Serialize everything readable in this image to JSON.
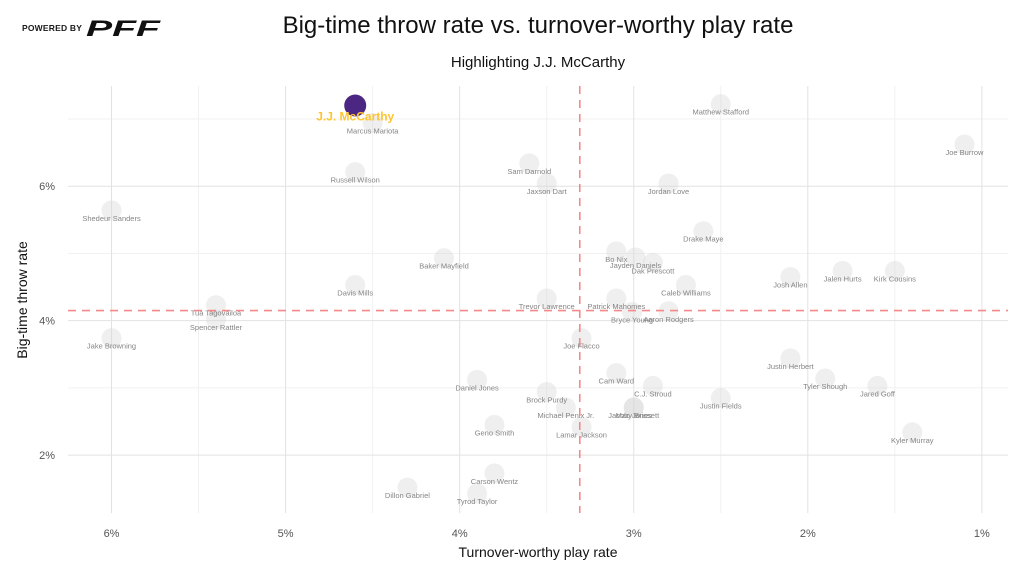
{
  "branding": {
    "powered_by": "POWERED BY",
    "logo_text": "PFF"
  },
  "chart_data": {
    "type": "scatter",
    "title": "Big-time throw rate vs. turnover-worthy play rate",
    "subtitle": "Highlighting J.J. McCarthy",
    "xlabel": "Turnover-worthy play rate",
    "ylabel": "Big-time throw rate",
    "x_unit": "%",
    "y_unit": "%",
    "x_reversed": true,
    "xlim": [
      6.25,
      0.85
    ],
    "ylim": [
      1.14,
      7.49
    ],
    "grid": true,
    "x_ticks": [
      6,
      5,
      4,
      3,
      2,
      1
    ],
    "x_tick_labels": [
      "6%",
      "5%",
      "4%",
      "3%",
      "2%",
      "1%"
    ],
    "x_minor_ticks": [
      5.5,
      4.5,
      3.5,
      2.5,
      1.5
    ],
    "y_ticks": [
      6,
      4,
      2
    ],
    "y_tick_labels": [
      "6%",
      "4%",
      "2%"
    ],
    "y_minor_ticks": [
      7,
      5,
      3
    ],
    "reference_lines": {
      "x": 3.31,
      "y": 4.15
    },
    "colors": {
      "highlight_point": "#4B2683",
      "highlight_label": "#FFC52F",
      "reference_line": "#F4898A",
      "point": "#d6d6d6",
      "point_label": "#858585"
    },
    "highlight": {
      "name": "J.J. McCarthy",
      "twp": 4.6,
      "btt": 7.2
    },
    "points": [
      {
        "name": "Marcus Mariota",
        "twp": 4.5,
        "btt": 6.94
      },
      {
        "name": "Russell Wilson",
        "twp": 4.6,
        "btt": 6.21
      },
      {
        "name": "Shedeur Sanders",
        "twp": 6.0,
        "btt": 5.64
      },
      {
        "name": "Sam Darnold",
        "twp": 3.6,
        "btt": 6.34
      },
      {
        "name": "Jaxson Dart",
        "twp": 3.5,
        "btt": 6.04
      },
      {
        "name": "Matthew Stafford",
        "twp": 2.5,
        "btt": 7.22
      },
      {
        "name": "Joe Burrow",
        "twp": 1.1,
        "btt": 6.62
      },
      {
        "name": "Jordan Love",
        "twp": 2.8,
        "btt": 6.04
      },
      {
        "name": "Drake Maye",
        "twp": 2.6,
        "btt": 5.33
      },
      {
        "name": "Baker Mayfield",
        "twp": 4.09,
        "btt": 4.93
      },
      {
        "name": "Bo Nix",
        "twp": 3.1,
        "btt": 5.03
      },
      {
        "name": "Jayden Daniels",
        "twp": 2.99,
        "btt": 4.94
      },
      {
        "name": "Dak Prescott",
        "twp": 2.89,
        "btt": 4.86
      },
      {
        "name": "Caleb Williams",
        "twp": 2.7,
        "btt": 4.53
      },
      {
        "name": "Davis Mills",
        "twp": 4.6,
        "btt": 4.53
      },
      {
        "name": "Trevor Lawrence",
        "twp": 3.5,
        "btt": 4.33
      },
      {
        "name": "Patrick Mahomes",
        "twp": 3.1,
        "btt": 4.33
      },
      {
        "name": "Bryce Young",
        "twp": 3.01,
        "btt": 4.13
      },
      {
        "name": "Aaron Rodgers",
        "twp": 2.8,
        "btt": 4.14
      },
      {
        "name": "Tua Tagovailoa",
        "twp": 5.4,
        "btt": 4.23
      },
      {
        "name": "Spencer Rattler",
        "twp": 5.4,
        "btt": 4.02
      },
      {
        "name": "Jake Browning",
        "twp": 6.0,
        "btt": 3.74
      },
      {
        "name": "Joe Flacco",
        "twp": 3.3,
        "btt": 3.74
      },
      {
        "name": "Josh Allen",
        "twp": 2.1,
        "btt": 4.65
      },
      {
        "name": "Jalen Hurts",
        "twp": 1.8,
        "btt": 4.74
      },
      {
        "name": "Kirk Cousins",
        "twp": 1.5,
        "btt": 4.74
      },
      {
        "name": "Justin Herbert",
        "twp": 2.1,
        "btt": 3.44
      },
      {
        "name": "Tyler Shough",
        "twp": 1.9,
        "btt": 3.14
      },
      {
        "name": "Jared Goff",
        "twp": 1.6,
        "btt": 3.03
      },
      {
        "name": "Justin Fields",
        "twp": 2.5,
        "btt": 2.85
      },
      {
        "name": "Kyler Murray",
        "twp": 1.4,
        "btt": 2.34
      },
      {
        "name": "Daniel Jones",
        "twp": 3.9,
        "btt": 3.12
      },
      {
        "name": "Cam Ward",
        "twp": 3.1,
        "btt": 3.22
      },
      {
        "name": "C.J. Stroud",
        "twp": 2.89,
        "btt": 3.03
      },
      {
        "name": "Brock Purdy",
        "twp": 3.5,
        "btt": 2.94
      },
      {
        "name": "Michael Penix Jr.",
        "twp": 3.39,
        "btt": 2.71
      },
      {
        "name": "Jacoby Brissett",
        "twp": 3.0,
        "btt": 2.71
      },
      {
        "name": "Mac Jones",
        "twp": 3.0,
        "btt": 2.71
      },
      {
        "name": "Geno Smith",
        "twp": 3.8,
        "btt": 2.45
      },
      {
        "name": "Lamar Jackson",
        "twp": 3.3,
        "btt": 2.42
      },
      {
        "name": "Carson Wentz",
        "twp": 3.8,
        "btt": 1.73
      },
      {
        "name": "Dillon Gabriel",
        "twp": 4.3,
        "btt": 1.52
      },
      {
        "name": "Tyrod Taylor",
        "twp": 3.9,
        "btt": 1.43
      }
    ]
  }
}
